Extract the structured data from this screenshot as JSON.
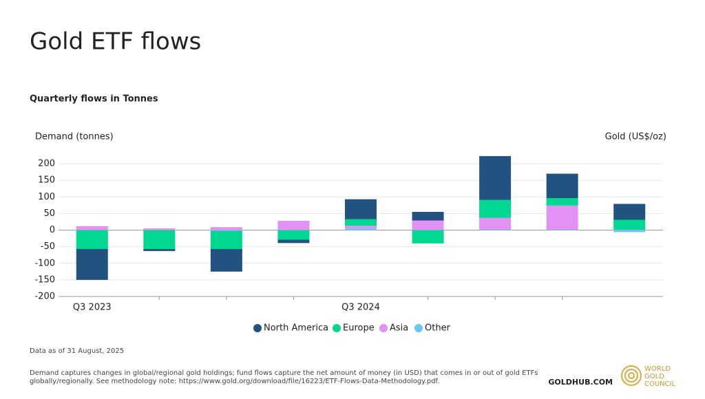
{
  "chart_data": {
    "type": "stacked-bar",
    "title": "Gold ETF flows",
    "subtitle": "Quarterly flows in Tonnes",
    "y_label": "Demand (tonnes)",
    "y2_label": "Gold (US$/oz)",
    "categories": [
      "Q3 2023",
      null,
      null,
      null,
      "Q3 2024",
      null,
      null,
      null,
      null
    ],
    "series": [
      {
        "name": "North America",
        "color": "#22527f",
        "values": [
          -93,
          -6,
          -68,
          -10,
          60,
          26,
          132,
          74,
          48
        ]
      },
      {
        "name": "Europe",
        "color": "#00d891",
        "values": [
          -57,
          -57,
          -55,
          -29,
          20,
          -40,
          54,
          22,
          30
        ]
      },
      {
        "name": "Asia",
        "color": "#e391f5",
        "values": [
          12,
          5,
          9,
          28,
          8,
          29,
          35,
          72,
          1
        ]
      },
      {
        "name": "Other",
        "color": "#6ac6f2",
        "values": [
          0,
          0,
          -2,
          0,
          5,
          0,
          2,
          2,
          -6
        ]
      }
    ],
    "ylim": [
      -200,
      200
    ],
    "yticks": [
      200,
      150,
      100,
      50,
      0,
      -50,
      -100,
      -150,
      -200
    ],
    "grid": true,
    "legend": "bottom",
    "note": "Data as of 31 August, 2025",
    "footnote_lines": [
      "Demand captures changes in global/regional gold holdings; fund flows capture the net amount of money (in USD) that comes in or out of gold ETFs",
      "globally/regionally. See methodology note: https://www.gold.org/download/file/16223/ETF-Flows-Data-Methodology.pdf."
    ],
    "source": "GOLDHUB.COM",
    "logo_lines": [
      "WORLD",
      "GOLD",
      "COUNCIL"
    ]
  }
}
